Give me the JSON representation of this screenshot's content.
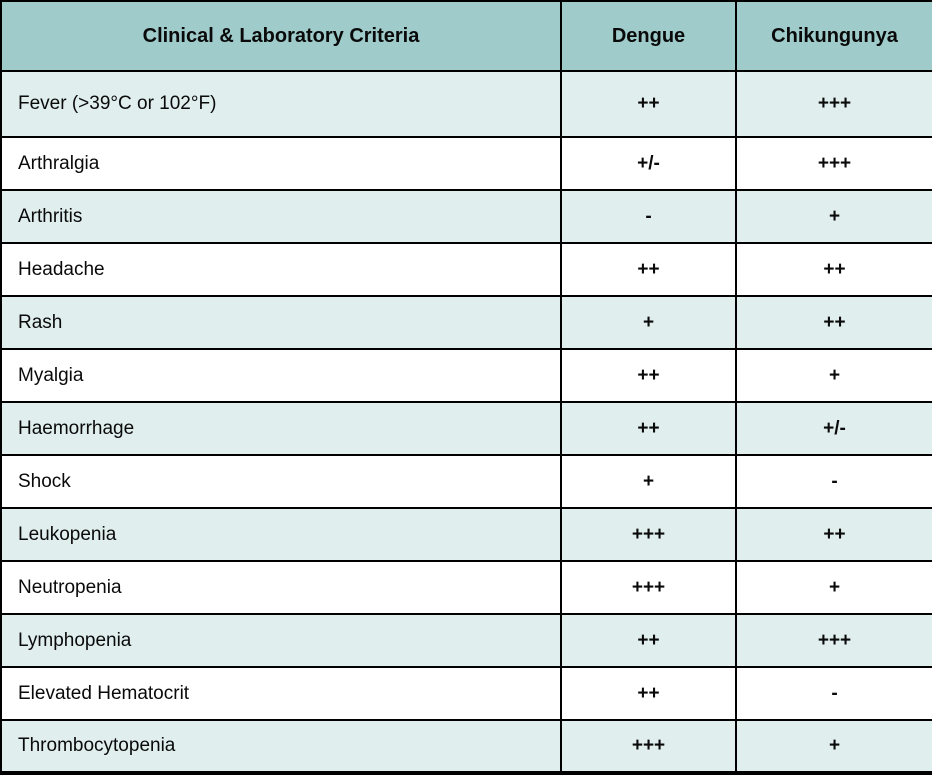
{
  "table": {
    "header": {
      "criteria": "Clinical & Laboratory Criteria",
      "dengue": "Dengue",
      "chikungunya": "Chikungunya"
    },
    "rows": [
      {
        "criteria": "Fever (>39°C or 102°F)",
        "dengue": "++",
        "chikungunya": "+++"
      },
      {
        "criteria": "Arthralgia",
        "dengue": "+/-",
        "chikungunya": "+++"
      },
      {
        "criteria": "Arthritis",
        "dengue": "-",
        "chikungunya": "+"
      },
      {
        "criteria": "Headache",
        "dengue": "++",
        "chikungunya": "++"
      },
      {
        "criteria": "Rash",
        "dengue": "+",
        "chikungunya": "++"
      },
      {
        "criteria": "Myalgia",
        "dengue": "++",
        "chikungunya": "+"
      },
      {
        "criteria": "Haemorrhage",
        "dengue": "++",
        "chikungunya": "+/-"
      },
      {
        "criteria": "Shock",
        "dengue": "+",
        "chikungunya": "-"
      },
      {
        "criteria": "Leukopenia",
        "dengue": "+++",
        "chikungunya": "++"
      },
      {
        "criteria": "Neutropenia",
        "dengue": "+++",
        "chikungunya": "+"
      },
      {
        "criteria": "Lymphopenia",
        "dengue": "++",
        "chikungunya": "+++"
      },
      {
        "criteria": "Elevated Hematocrit",
        "dengue": "++",
        "chikungunya": "-"
      },
      {
        "criteria": "Thrombocytopenia",
        "dengue": "+++",
        "chikungunya": "+"
      }
    ]
  },
  "colors": {
    "header_bg": "#9fcbcb",
    "row_shaded_bg": "#e0eeee",
    "row_plain_bg": "#ffffff",
    "border": "#000000",
    "text": "#0a0a0a"
  }
}
